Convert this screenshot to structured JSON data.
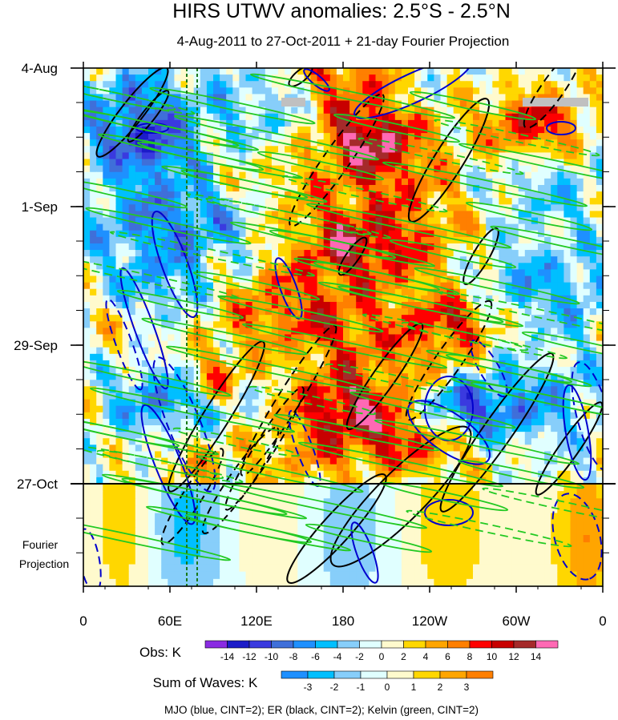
{
  "chart_data": {
    "type": "heatmap",
    "title": "HIRS UTWV anomalies: 2.5°S - 2.5°N",
    "subtitle": "4-Aug-2011 to 27-Oct-2011 + 21-day Fourier Projection",
    "x_axis": {
      "ticks": [
        "0",
        "60E",
        "120E",
        "180",
        "120W",
        "60W",
        "0"
      ],
      "tick_longitudes_deg": [
        0,
        60,
        120,
        180,
        240,
        300,
        360
      ]
    },
    "y_axis": {
      "ticks": [
        "4-Aug",
        "1-Sep",
        "29-Sep",
        "27-Oct"
      ],
      "time_range": [
        "2011-08-04",
        "2011-10-27"
      ],
      "projection_days": 21,
      "projection_label": [
        "Fourier",
        "Projection"
      ]
    },
    "obs_colorbar": {
      "label": "Obs: K",
      "levels": [
        -14,
        -12,
        -10,
        -8,
        -6,
        -4,
        -2,
        0,
        2,
        4,
        6,
        8,
        10,
        12,
        14
      ],
      "colors": [
        "#8a2be2",
        "#1c1cc8",
        "#3a3adf",
        "#3f6fd9",
        "#1e90ff",
        "#00bfff",
        "#87cefa",
        "#e0ffff",
        "#fffacd",
        "#ffd700",
        "#ffa500",
        "#ff7f00",
        "#ff0000",
        "#c80000",
        "#a52a2a",
        "#ff69b4"
      ]
    },
    "waves_colorbar": {
      "label": "Sum of Waves: K",
      "levels": [
        -3,
        -2,
        -1,
        0,
        1,
        2,
        3
      ],
      "colors": [
        "#1e90ff",
        "#00bfff",
        "#87cefa",
        "#e0ffff",
        "#fffacd",
        "#ffd700",
        "#ffa500",
        "#ff7f00"
      ]
    },
    "contours": [
      {
        "name": "MJO",
        "color": "#0000cd"
      },
      {
        "name": "ER",
        "color": "#000000"
      },
      {
        "name": "Kelvin",
        "color": "#22c922"
      }
    ],
    "reference_lines_lon_deg": [
      72,
      79
    ],
    "footnote": "MJO (blue, CINT=2); ER (black, CINT=2); Kelvin (green, CINT=2)"
  }
}
